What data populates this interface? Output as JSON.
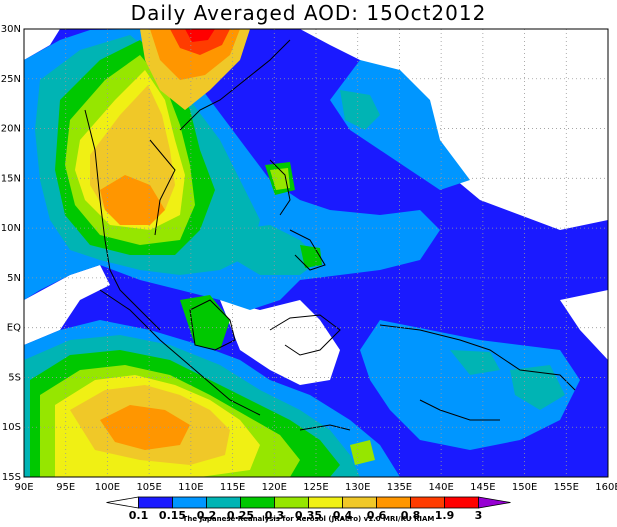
{
  "title": "Daily Averaged AOD: 15Oct2012",
  "credit": "The Japanese Reanalysis for Aerosol (JRAero) v1.0 MRI/KU RIAM",
  "map": {
    "lon_range": [
      90,
      160
    ],
    "lat_range": [
      -15,
      30
    ],
    "lon_labels": [
      "90E",
      "95E",
      "100E",
      "105E",
      "110E",
      "115E",
      "120E",
      "125E",
      "130E",
      "135E",
      "140E",
      "145E",
      "150E",
      "155E",
      "160E"
    ],
    "lat_labels": [
      "30N",
      "25N",
      "20N",
      "15N",
      "10N",
      "5N",
      "EQ",
      "5S",
      "10S",
      "15S"
    ],
    "grid": "dotted"
  },
  "colorbar": {
    "levels": [
      "0.1",
      "0.15",
      "0.2",
      "0.25",
      "0.3",
      "0.35",
      "0.4",
      "0.6",
      "0.8",
      "1.9",
      "3"
    ],
    "colors": [
      "#ffffff",
      "#1a1aff",
      "#0096ff",
      "#00b4b4",
      "#00c800",
      "#96e600",
      "#f0f014",
      "#f0c828",
      "#ff9600",
      "#ff3c00",
      "#ff0000",
      "#9600d2"
    ]
  }
}
